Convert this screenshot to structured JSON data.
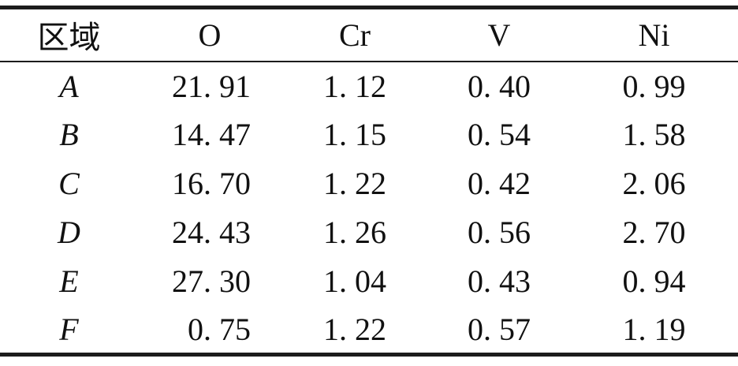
{
  "colors": {
    "text": "#111111",
    "rule": "#1c1c1c",
    "background": "#ffffff"
  },
  "table": {
    "columns": {
      "region": "区域",
      "o": "O",
      "cr": "Cr",
      "v": "V",
      "ni": "Ni"
    },
    "rows": [
      {
        "region": "A",
        "values": [
          "21. 91",
          "1. 12",
          "0. 40",
          "0. 99"
        ]
      },
      {
        "region": "B",
        "values": [
          "14. 47",
          "1. 15",
          "0. 54",
          "1. 58"
        ]
      },
      {
        "region": "C",
        "values": [
          "16. 70",
          "1. 22",
          "0. 42",
          "2. 06"
        ]
      },
      {
        "region": "D",
        "values": [
          "24. 43",
          "1. 26",
          "0. 56",
          "2. 70"
        ]
      },
      {
        "region": "E",
        "values": [
          "27. 30",
          "1. 04",
          "0. 43",
          "0. 94"
        ]
      },
      {
        "region": "F",
        "values": [
          "0. 75",
          "1. 22",
          "0. 57",
          "1. 19"
        ]
      }
    ]
  }
}
